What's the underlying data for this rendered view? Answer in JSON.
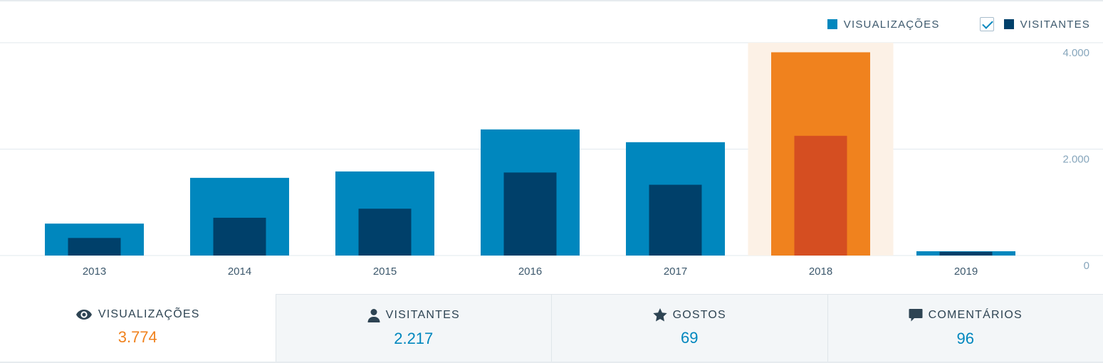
{
  "legend": {
    "views_label": "VISUALIZAÇÕES",
    "views_color": "#0087be",
    "visitors_label": "VISITANTES",
    "visitors_color": "#00406a",
    "visitors_checked": true
  },
  "chart_data": {
    "type": "bar",
    "categories": [
      "2013",
      "2014",
      "2015",
      "2016",
      "2017",
      "2018",
      "2019"
    ],
    "series": [
      {
        "name": "VISUALIZAÇÕES",
        "values": [
          600,
          1460,
          1580,
          2370,
          2130,
          3820,
          80
        ],
        "color": "#0087be"
      },
      {
        "name": "VISITANTES",
        "values": [
          330,
          710,
          880,
          1560,
          1330,
          2250,
          70
        ],
        "color": "#00406a"
      }
    ],
    "highlighted_category": "2018",
    "highlight_colors": {
      "views": "#f0821e",
      "visitors": "#d54e21",
      "background": "#fcf1e6"
    },
    "yticks": [
      "0",
      "2.000",
      "4.000"
    ],
    "ytick_values": [
      0,
      2000,
      4000
    ],
    "ylim": [
      0,
      4000
    ],
    "grid": true
  },
  "tabs": [
    {
      "label": "VISUALIZAÇÕES",
      "value": "3.774",
      "icon": "eye-icon",
      "active": true
    },
    {
      "label": "VISITANTES",
      "value": "2.217",
      "icon": "person-icon",
      "active": false
    },
    {
      "label": "GOSTOS",
      "value": "69",
      "icon": "star-icon",
      "active": false
    },
    {
      "label": "COMENTÁRIOS",
      "value": "96",
      "icon": "comment-icon",
      "active": false
    }
  ]
}
